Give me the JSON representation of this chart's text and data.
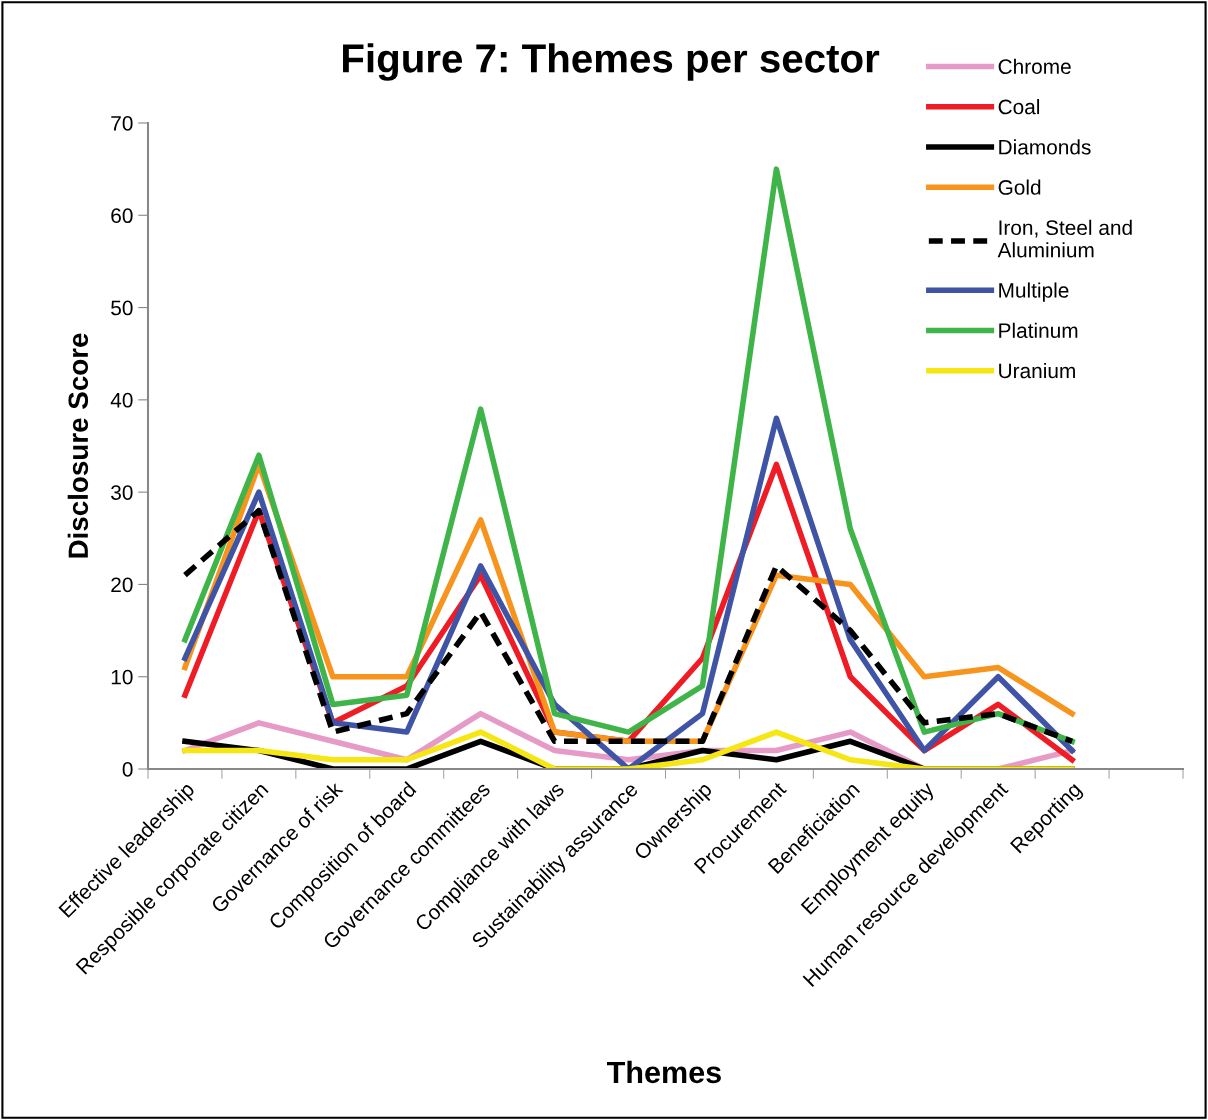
{
  "chart_data": {
    "type": "line",
    "title": "Figure 7: Themes per sector",
    "xlabel": "Themes",
    "ylabel": "Disclosure Score",
    "categories": [
      "Effective leadership",
      "Resposible corporate citizen",
      "Governance of risk",
      "Composition of board",
      "Governance committees",
      "Compliance with laws",
      "Sustainability assurance",
      "Ownership",
      "Procurement",
      "Beneficiation",
      "Employment equity",
      "Human resource development",
      "Reporting",
      null
    ],
    "series": [
      {
        "name": "Chrome",
        "color": "#e59ac8",
        "values": [
          2,
          5,
          3,
          1,
          6,
          2,
          1,
          2,
          2,
          4,
          0,
          0,
          2,
          null
        ]
      },
      {
        "name": "Coal",
        "color": "#ee1c25",
        "values": [
          8,
          28,
          5,
          9,
          21,
          4,
          3,
          12,
          33,
          10,
          2,
          7,
          1,
          null
        ]
      },
      {
        "name": "Diamonds",
        "color": "#000000",
        "values": [
          3,
          2,
          0,
          0,
          3,
          0,
          0,
          2,
          1,
          3,
          0,
          0,
          0,
          null
        ]
      },
      {
        "name": "Gold",
        "color": "#f7941d",
        "values": [
          11,
          33,
          10,
          10,
          27,
          4,
          3,
          3,
          21,
          20,
          10,
          11,
          6,
          null
        ]
      },
      {
        "name": "Iron, Steel and Aluminium",
        "color": "#000000",
        "line_style": "dashed",
        "values": [
          21,
          28,
          4,
          6,
          17,
          3,
          3,
          3,
          22,
          15,
          5,
          6,
          3,
          null
        ]
      },
      {
        "name": "Multiple",
        "color": "#3f54a5",
        "values": [
          12,
          30,
          5,
          4,
          22,
          7,
          0,
          6,
          38,
          14,
          2,
          10,
          2,
          null
        ]
      },
      {
        "name": "Platinum",
        "color": "#3fb549",
        "values": [
          14,
          34,
          7,
          8,
          39,
          6,
          4,
          9,
          65,
          26,
          4,
          6,
          3,
          null
        ]
      },
      {
        "name": "Uranium",
        "color": "#f5e614",
        "values": [
          2,
          2,
          1,
          1,
          4,
          0,
          0,
          1,
          4,
          1,
          0,
          0,
          0,
          null
        ]
      }
    ],
    "ylim": [
      0,
      70
    ],
    "yticks": [
      0,
      10,
      20,
      30,
      40,
      50,
      60,
      70
    ],
    "grid": false,
    "legend": "top right",
    "marker": "none",
    "line_style": "solid"
  }
}
